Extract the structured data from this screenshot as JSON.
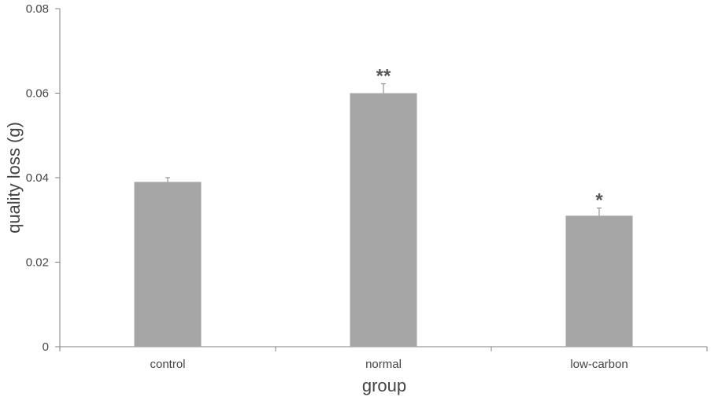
{
  "chart_data": {
    "type": "bar",
    "categories": [
      "control",
      "normal",
      "low-carbon"
    ],
    "values": [
      0.039,
      0.06,
      0.031
    ],
    "errors": [
      0.001,
      0.0022,
      0.0018
    ],
    "significance": [
      "",
      "**",
      "*"
    ],
    "xlabel": "group",
    "ylabel": "quality loss (g)",
    "ylim": [
      0,
      0.08
    ],
    "yticks": [
      0,
      0.02,
      0.04,
      0.06,
      0.08
    ],
    "ytick_labels": [
      "0",
      "0.02",
      "0.04",
      "0.06",
      "0.08"
    ],
    "bar_color": "#a6a6a6",
    "axis_color": "#808080",
    "grid": false,
    "legend": "none"
  }
}
